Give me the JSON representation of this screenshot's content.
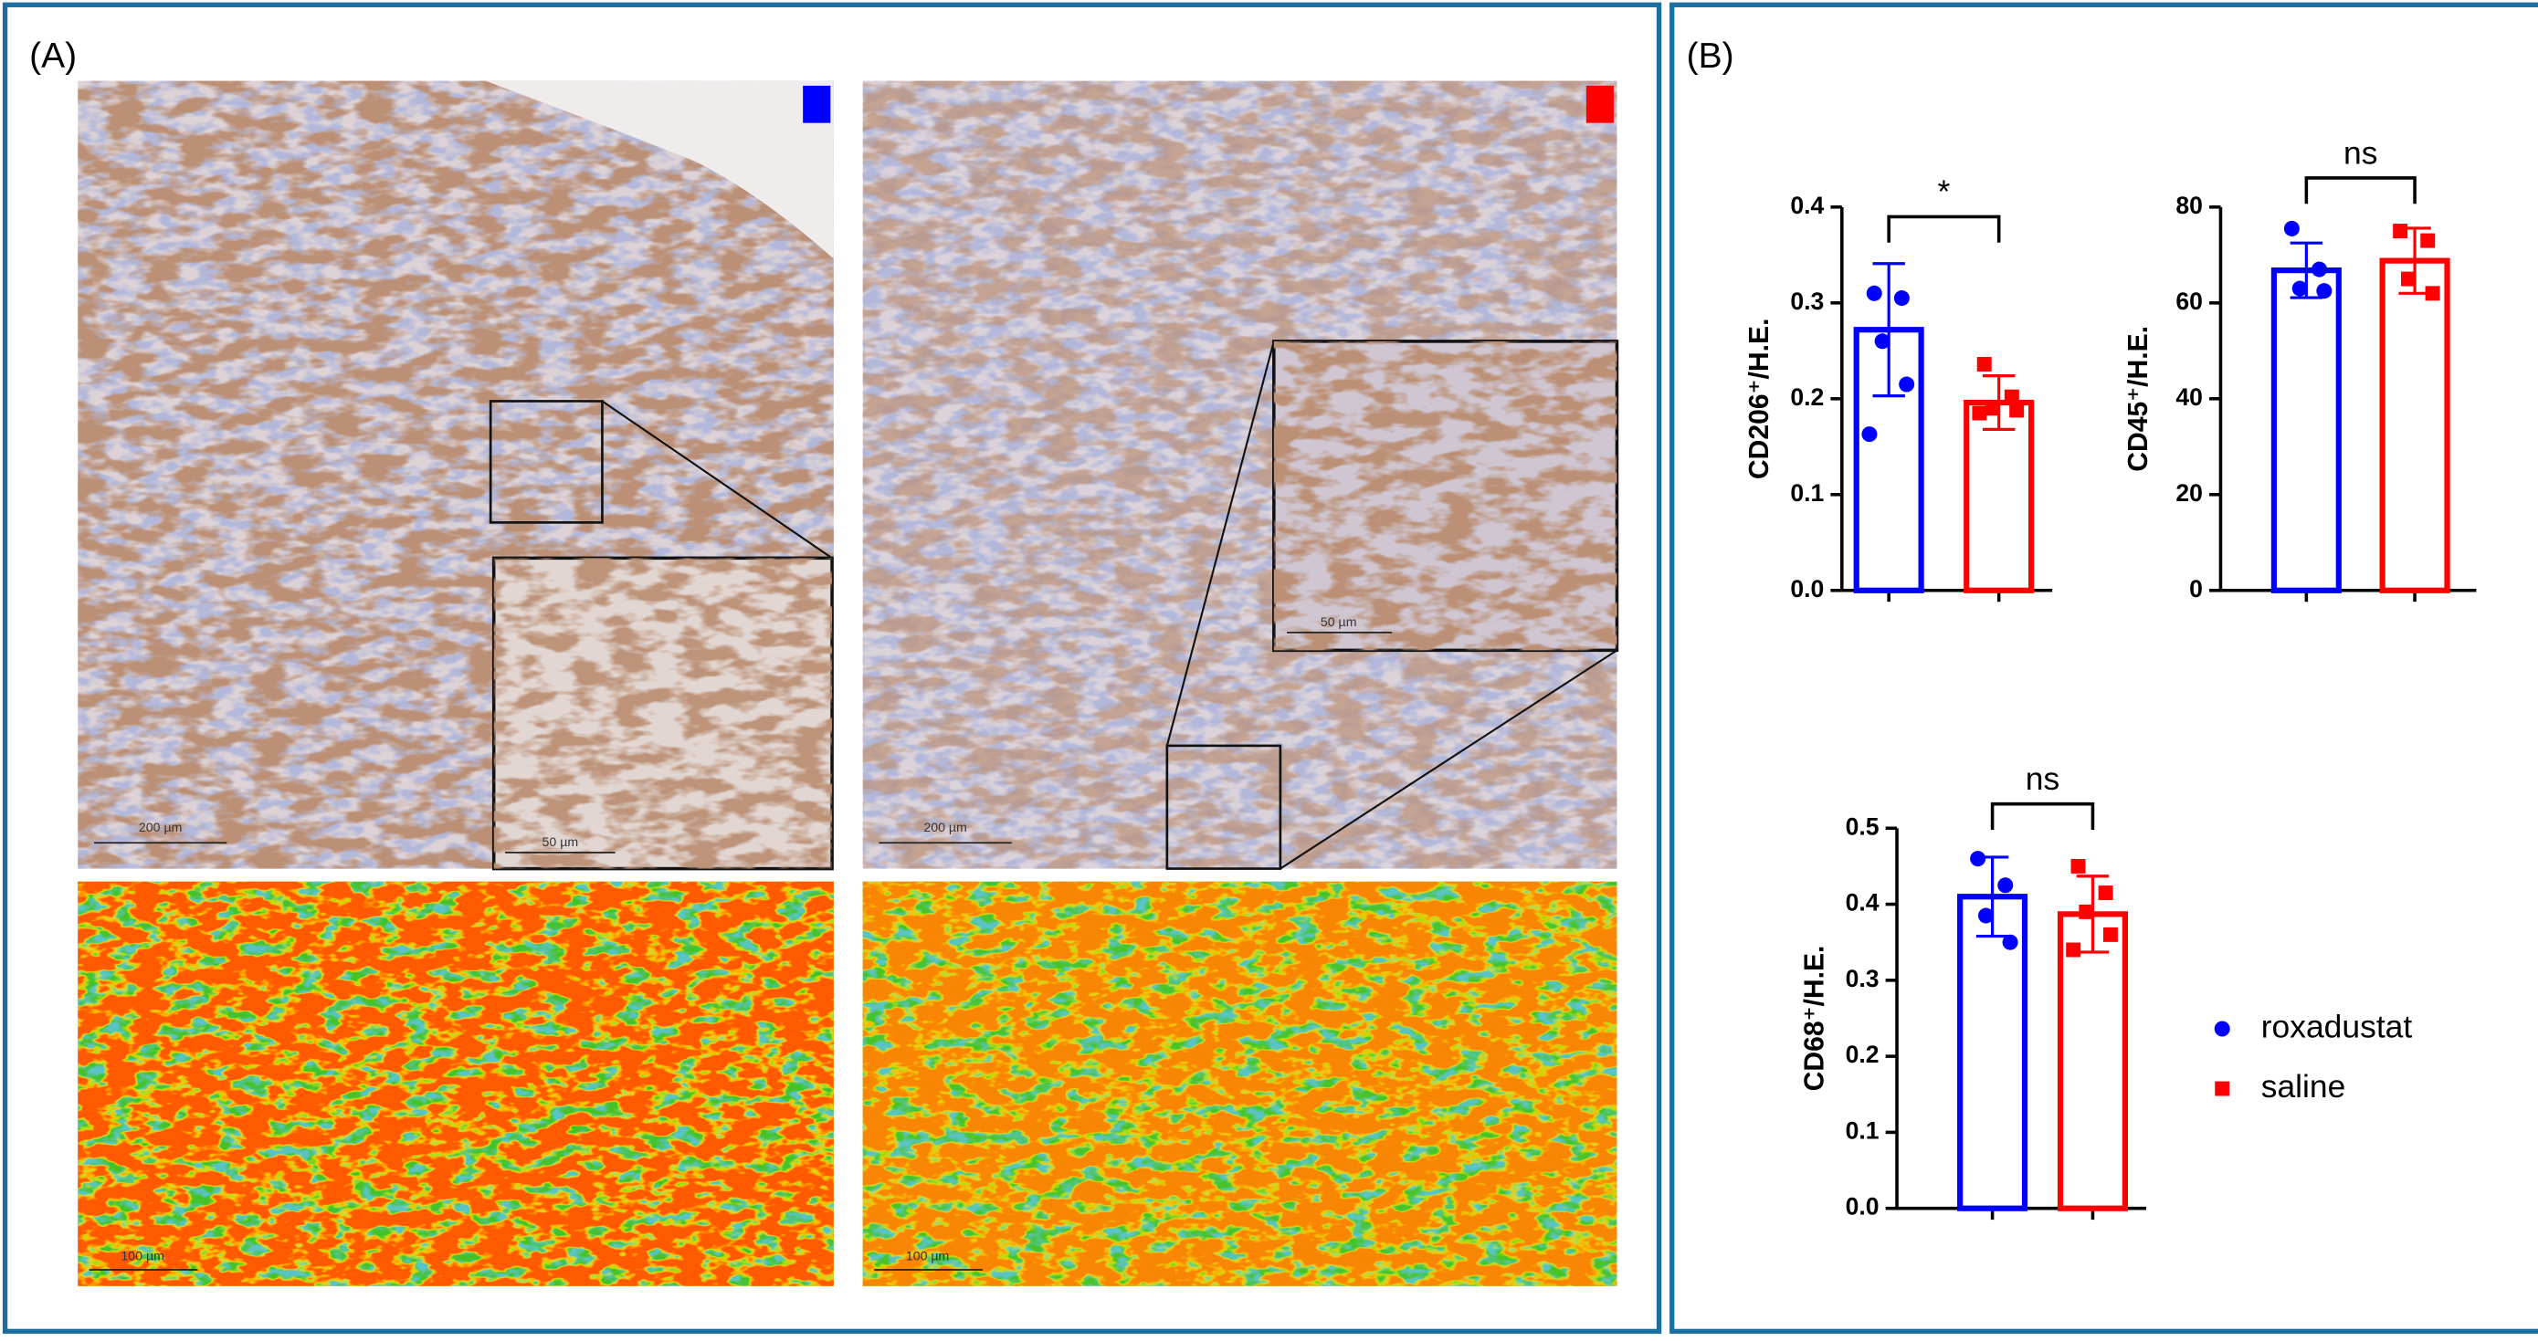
{
  "panels": {
    "a": {
      "label": "(A)",
      "scale_bars": [
        "200 µm",
        "50 µm",
        "200 µm",
        "50 µm",
        "100 µm",
        "100 µm"
      ]
    },
    "b": {
      "label": "(B)"
    }
  },
  "chart_data": [
    {
      "type": "bar",
      "ylabel": "CD206⁺/H.E.",
      "ylim": [
        0,
        0.4
      ],
      "yticks": [
        {
          "value": 0,
          "label": "0.0"
        },
        0.1,
        0.2,
        0.3,
        0.4
      ],
      "annotation": "*",
      "series": [
        {
          "color": "#0000ff",
          "marker": "circle",
          "values": [
            0.272
          ],
          "errors": [
            0.069
          ],
          "points": [
            0.31,
            0.305,
            0.26,
            0.215,
            0.163
          ]
        },
        {
          "color": "#ff0000",
          "marker": "square",
          "values": [
            0.196
          ],
          "errors": [
            0.028
          ],
          "points": [
            0.236,
            0.202,
            0.19,
            0.188,
            0.185
          ]
        }
      ]
    },
    {
      "type": "bar",
      "ylabel": "CD45⁺/H.E.",
      "ylim": [
        0,
        80
      ],
      "yticks": [
        0,
        20,
        40,
        60,
        80
      ],
      "annotation": "ns",
      "series": [
        {
          "color": "#0000ff",
          "marker": "circle",
          "values": [
            66.8
          ],
          "errors": [
            5.7
          ],
          "points": [
            75.5,
            67,
            63,
            62.5
          ]
        },
        {
          "color": "#ff0000",
          "marker": "square",
          "values": [
            68.8
          ],
          "errors": [
            6.8
          ],
          "points": [
            75,
            73,
            65,
            62
          ]
        }
      ]
    },
    {
      "type": "bar",
      "ylabel": "CD68⁺/H.E.",
      "ylim": [
        0,
        0.5
      ],
      "yticks": [
        {
          "value": 0,
          "label": "0.0"
        },
        0.1,
        0.2,
        0.3,
        0.4,
        0.5
      ],
      "annotation": "ns",
      "legend": "right",
      "series": [
        {
          "name": "roxadustat",
          "color": "#0000ff",
          "marker": "circle",
          "values": [
            0.41
          ],
          "errors": [
            0.052
          ],
          "points": [
            0.46,
            0.425,
            0.385,
            0.35
          ]
        },
        {
          "name": "saline",
          "color": "#ff0000",
          "marker": "square",
          "values": [
            0.387
          ],
          "errors": [
            0.05
          ],
          "points": [
            0.45,
            0.415,
            0.39,
            0.36,
            0.34
          ]
        }
      ]
    }
  ]
}
